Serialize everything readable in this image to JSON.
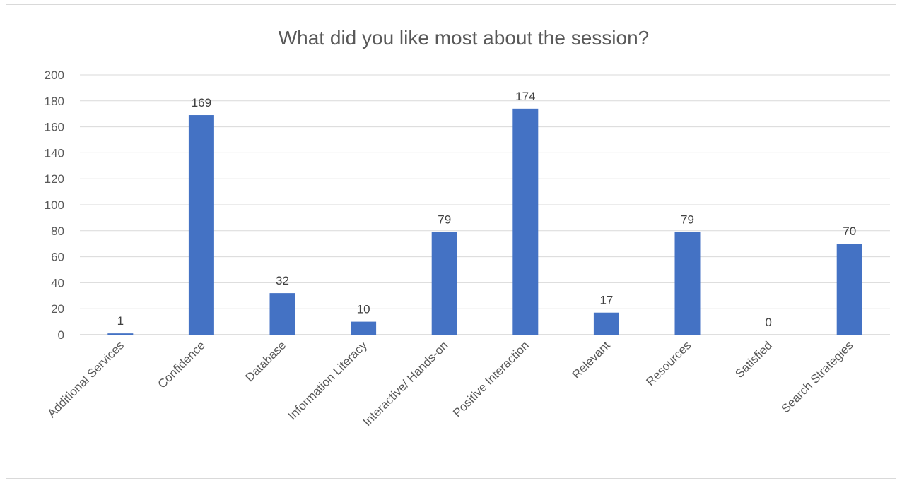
{
  "chart_data": {
    "type": "bar",
    "title": "What did you like most about the session?",
    "xlabel": "",
    "ylabel": "",
    "categories": [
      "Additional Services",
      "Confidence",
      "Database",
      "Information Literacy",
      "Interactive/ Hands-on",
      "Positive Interaction",
      "Relevant",
      "Resources",
      "Satisfied",
      "Search Strategies"
    ],
    "values": [
      1,
      169,
      32,
      10,
      79,
      174,
      17,
      79,
      0,
      70
    ],
    "ylim": [
      0,
      200
    ],
    "yticks": [
      0,
      20,
      40,
      60,
      80,
      100,
      120,
      140,
      160,
      180,
      200
    ],
    "grid": true,
    "legend": "none",
    "data_labels": true,
    "bar_color": "#4472C4"
  }
}
